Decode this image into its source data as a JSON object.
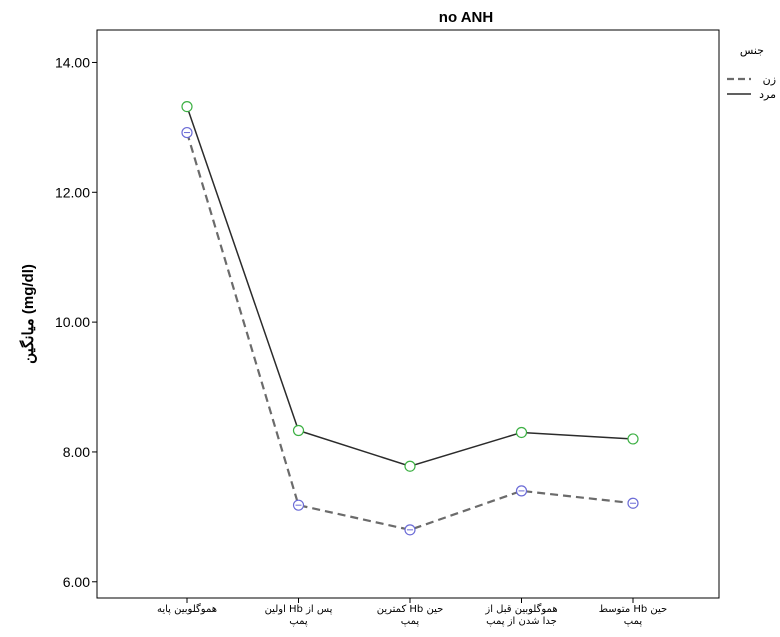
{
  "chart_data": {
    "type": "line",
    "title": "no ANH",
    "ylabel": "میانگین (mg/dl)",
    "xlabel": "",
    "ylim": [
      5.75,
      14.5
    ],
    "yticks": [
      "6.00",
      "8.00",
      "10.00",
      "12.00",
      "14.00"
    ],
    "ytick_values": [
      6,
      8,
      10,
      12,
      14
    ],
    "categories": [
      [
        "هموگلوبین پایه"
      ],
      [
        "اولین Hb پس از",
        "پمپ"
      ],
      [
        "کمترین Hb حین",
        "پمپ"
      ],
      [
        "هموگلوبین قبل از",
        "جدا شدن از پمپ"
      ],
      [
        "متوسط Hb حین",
        "پمپ"
      ]
    ],
    "legend": {
      "title": "جنس",
      "placement": "top-right"
    },
    "series": [
      {
        "name": "زن",
        "values": [
          12.92,
          7.18,
          6.8,
          7.4,
          7.21
        ],
        "color": "#6b6b6b",
        "style": "dashed",
        "marker_color": "#6b6bd6"
      },
      {
        "name": "مرد",
        "values": [
          13.32,
          8.33,
          7.78,
          8.3,
          8.2
        ],
        "color": "#2b2b2b",
        "style": "solid",
        "marker_color": "#3cb043"
      }
    ],
    "grid": false
  }
}
